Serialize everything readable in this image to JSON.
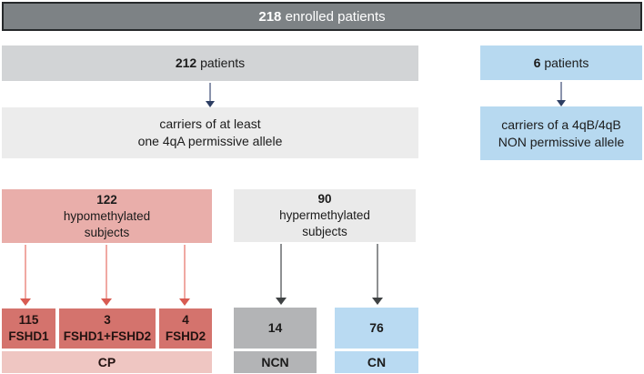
{
  "palette": {
    "banner_fill": "#7d8285",
    "banner_border": "#26292b",
    "gray_box": "#d2d4d6",
    "light_gray_box": "#ececec",
    "blue_box": "#b7d9f0",
    "pink_box": "#e9aeaa",
    "red_box": "#d4736d",
    "pale_pink_bar": "#efc6c2",
    "mid_gray_box": "#b3b4b6",
    "navy_arrow": "#2d3e63",
    "salmon_arrow": "#d85b52",
    "dark_arrow": "#3f4243"
  },
  "banner": {
    "count": "218",
    "label": "enrolled patients"
  },
  "left_branch": {
    "patients": {
      "count": "212",
      "label": "patients"
    },
    "carriers": {
      "line1": "carriers of at least",
      "line2": "one 4qA permissive allele"
    },
    "hypomethylated": {
      "count": "122",
      "line2": "hypomethylated",
      "line3": "subjects"
    },
    "hypermethylated": {
      "count": "90",
      "line2": "hypermethylated",
      "line3": "subjects"
    },
    "fshd1": {
      "count": "115",
      "label": "FSHD1"
    },
    "fshd1_fshd2": {
      "count": "3",
      "label": "FSHD1+FSHD2"
    },
    "fshd2": {
      "count": "4",
      "label": "FSHD2"
    },
    "cp_label": "CP",
    "ncn_count": "14",
    "ncn_label": "NCN",
    "cn_count": "76",
    "cn_label": "CN"
  },
  "right_branch": {
    "patients": {
      "count": "6",
      "label": "patients"
    },
    "carriers": {
      "line1": "carriers of a 4qB/4qB",
      "line2": "NON permissive allele"
    }
  }
}
